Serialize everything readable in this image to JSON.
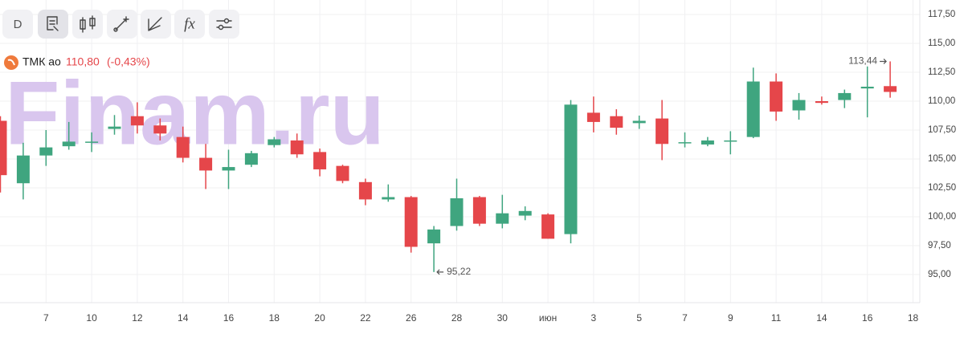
{
  "chart_data": {
    "type": "candlestick",
    "watermark": "Finam.ru",
    "toolbar": {
      "interval": "D",
      "function_icon": "fx"
    },
    "series_name": "ТМК ао",
    "last_price_label": "110,80",
    "change_label": "(-0,43%)",
    "max_label": "113,44",
    "min_label": "95,22",
    "up_color": "#3fa57f",
    "down_color": "#e5464a",
    "categories": [
      null,
      null,
      "7",
      null,
      "10",
      null,
      "12",
      null,
      "14",
      null,
      "16",
      null,
      "18",
      null,
      "20",
      null,
      "22",
      null,
      "26",
      null,
      "28",
      null,
      "30",
      null,
      "июн",
      null,
      "3",
      null,
      "5",
      null,
      "7",
      null,
      "9",
      null,
      "11",
      null,
      "14",
      null,
      "16",
      null,
      "18"
    ],
    "open": [
      108.3,
      102.9,
      105.3,
      106.1,
      106.4,
      107.6,
      108.7,
      107.9,
      106.9,
      105.1,
      104.0,
      104.5,
      106.2,
      106.6,
      105.6,
      104.4,
      103.0,
      101.5,
      101.7,
      97.7,
      99.2,
      101.7,
      99.4,
      100.1,
      100.2,
      98.5,
      109.0,
      108.7,
      108.1,
      108.5,
      106.35,
      106.25,
      106.5,
      106.9,
      111.7,
      109.2,
      110.0,
      110.1,
      111.1,
      111.3,
      null
    ],
    "high": [
      108.7,
      106.4,
      107.5,
      108.2,
      107.3,
      108.8,
      109.9,
      108.5,
      107.8,
      106.3,
      105.8,
      105.7,
      106.9,
      107.2,
      105.9,
      104.5,
      103.3,
      102.8,
      101.8,
      99.2,
      103.3,
      101.8,
      101.9,
      100.9,
      100.3,
      110.1,
      110.4,
      109.3,
      108.75,
      110.1,
      107.3,
      106.9,
      107.4,
      112.9,
      112.4,
      110.7,
      110.4,
      111.0,
      113.0,
      113.44,
      null
    ],
    "low": [
      102.1,
      101.5,
      104.4,
      105.8,
      105.6,
      107.1,
      107.2,
      106.6,
      104.7,
      102.4,
      102.4,
      104.3,
      106.0,
      105.1,
      103.5,
      102.9,
      101.0,
      101.3,
      96.9,
      95.22,
      98.8,
      99.2,
      99.0,
      99.7,
      98.1,
      97.7,
      107.3,
      107.1,
      107.6,
      104.9,
      106.0,
      106.1,
      105.4,
      106.8,
      108.3,
      108.4,
      109.7,
      109.4,
      108.6,
      110.3,
      null
    ],
    "close": [
      103.6,
      105.3,
      106.0,
      106.5,
      106.5,
      107.8,
      107.9,
      107.2,
      105.1,
      104.0,
      104.3,
      105.5,
      106.7,
      105.4,
      104.1,
      103.1,
      101.5,
      101.7,
      97.4,
      98.9,
      101.6,
      99.4,
      100.3,
      100.5,
      98.1,
      109.7,
      108.2,
      107.7,
      108.3,
      106.3,
      106.45,
      106.6,
      106.6,
      111.7,
      109.1,
      110.1,
      109.85,
      110.7,
      111.25,
      110.8,
      null
    ],
    "ylim": [
      92.57,
      118.75
    ],
    "yticks": [
      {
        "value": 95,
        "label": "95,00"
      },
      {
        "value": 97.5,
        "label": "97,50"
      },
      {
        "value": 100,
        "label": "100,00"
      },
      {
        "value": 102.5,
        "label": "102,50"
      },
      {
        "value": 105,
        "label": "105,00"
      },
      {
        "value": 107.5,
        "label": "107,50"
      },
      {
        "value": 110,
        "label": "110,00"
      },
      {
        "value": 112.5,
        "label": "112,50"
      },
      {
        "value": 115,
        "label": "115,00"
      },
      {
        "value": 117.5,
        "label": "117,50"
      }
    ],
    "grid": true
  }
}
